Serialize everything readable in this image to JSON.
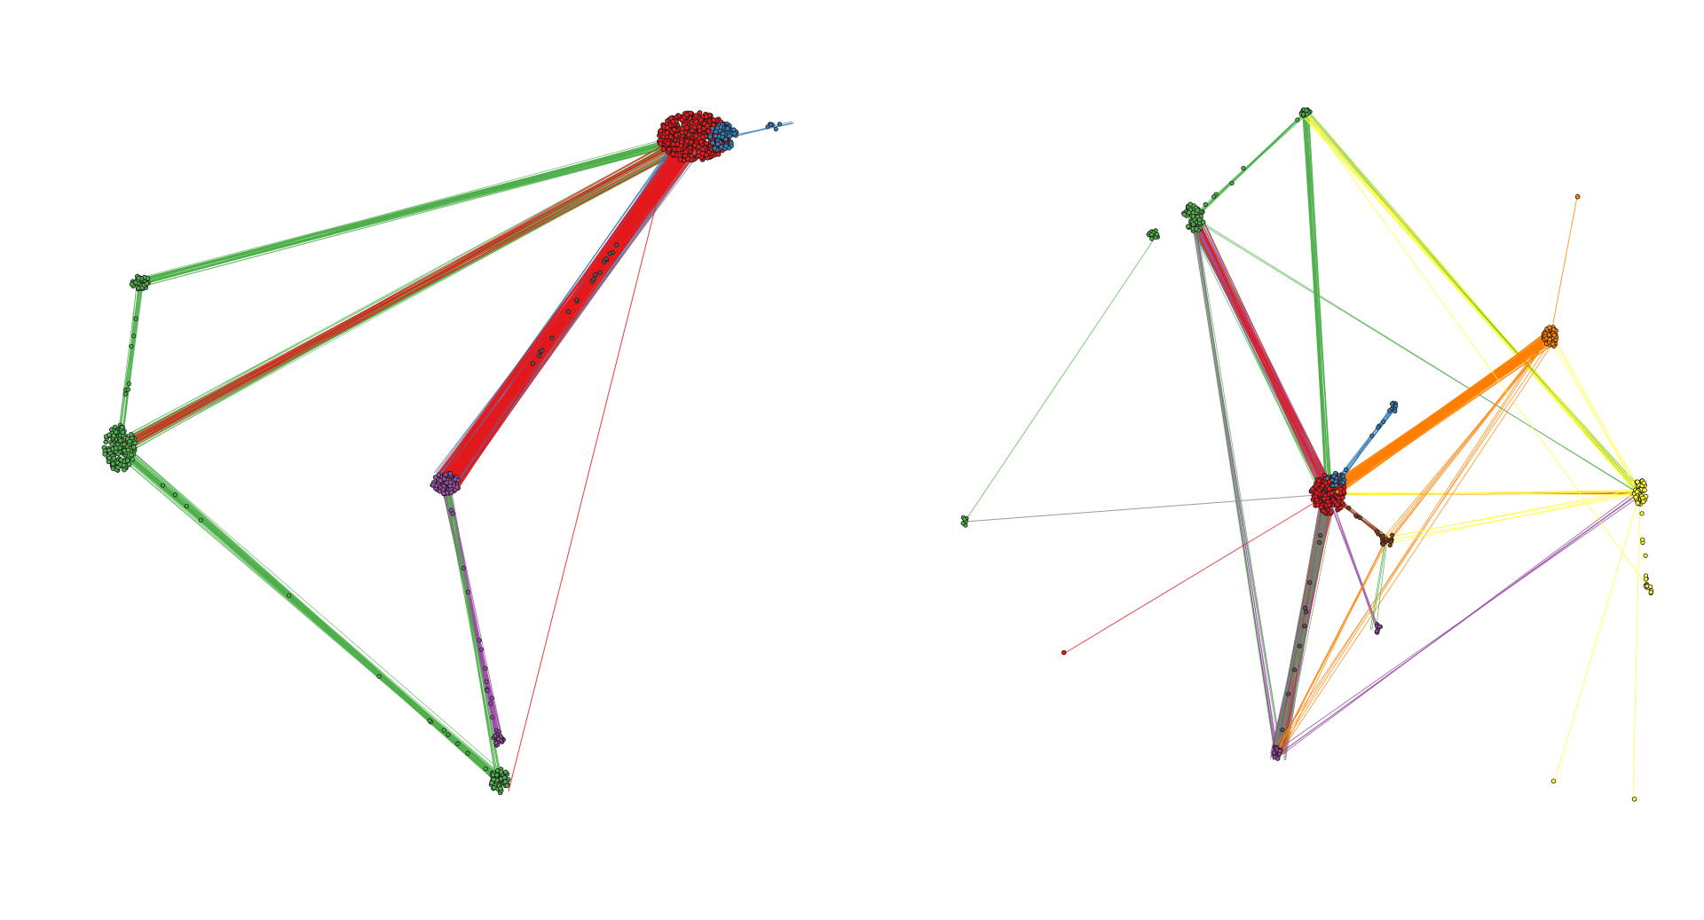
{
  "figure": {
    "panels": [
      {
        "id": "left-network",
        "clusters": [
          {
            "name": "red-hub",
            "color": "#e41a1c",
            "size": "large"
          },
          {
            "name": "blue-hub",
            "color": "#377eb8",
            "size": "small"
          },
          {
            "name": "green-cluster-top",
            "color": "#4daf4a",
            "size": "small"
          },
          {
            "name": "green-cluster-mid",
            "color": "#4daf4a",
            "size": "medium"
          },
          {
            "name": "purple-cluster-mid",
            "color": "#984ea3",
            "size": "medium"
          },
          {
            "name": "purple-cluster-low",
            "color": "#984ea3",
            "size": "small"
          },
          {
            "name": "green-cluster-bottom",
            "color": "#4daf4a",
            "size": "small"
          }
        ]
      },
      {
        "id": "right-network",
        "clusters": [
          {
            "name": "red-hub",
            "color": "#e41a1c",
            "size": "large"
          },
          {
            "name": "orange-cluster",
            "color": "#ff7f00",
            "size": "small"
          },
          {
            "name": "yellow-cluster",
            "color": "#ffff33",
            "size": "medium"
          },
          {
            "name": "green-cluster-top",
            "color": "#4daf4a",
            "size": "small"
          },
          {
            "name": "green-cluster-upper-left",
            "color": "#4daf4a",
            "size": "medium"
          },
          {
            "name": "green-cluster-far-left",
            "color": "#4daf4a",
            "size": "small"
          },
          {
            "name": "purple-cluster-bottom",
            "color": "#984ea3",
            "size": "small"
          },
          {
            "name": "blue-cluster",
            "color": "#377eb8",
            "size": "small"
          }
        ]
      }
    ],
    "colors": {
      "red": "#e41a1c",
      "blue": "#377eb8",
      "green": "#4daf4a",
      "purple": "#984ea3",
      "orange": "#ff7f00",
      "yellow": "#ffff33",
      "grey": "#888888",
      "node_outline": "#1a1a1a"
    }
  }
}
